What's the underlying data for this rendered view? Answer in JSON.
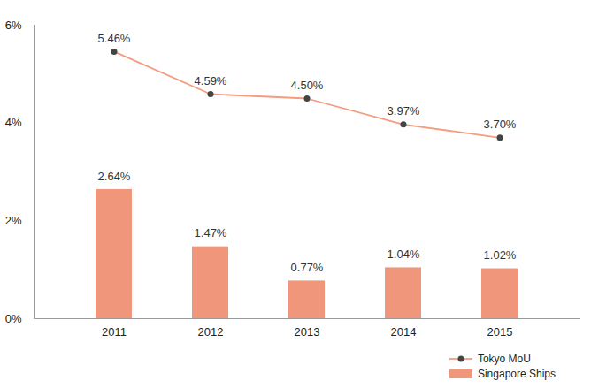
{
  "chart_data": {
    "type": "bar",
    "categories": [
      "2011",
      "2012",
      "2013",
      "2014",
      "2015"
    ],
    "series": [
      {
        "name": "Tokyo MoU",
        "type": "line",
        "color": "#f39c80",
        "marker": "circle",
        "values": [
          5.46,
          4.59,
          4.5,
          3.97,
          3.7
        ],
        "value_labels": [
          "5.46%",
          "4.59%",
          "4.50%",
          "3.97%",
          "3.70%"
        ]
      },
      {
        "name": "Singapore Ships",
        "type": "bar",
        "color": "#f0967a",
        "values": [
          2.64,
          1.47,
          0.77,
          1.04,
          1.02
        ],
        "value_labels": [
          "2.64%",
          "1.47%",
          "0.77%",
          "1.04%",
          "1.02%"
        ]
      }
    ],
    "ylim": [
      0,
      6
    ],
    "yticks": [
      {
        "value": 0,
        "label": "0%"
      },
      {
        "value": 2,
        "label": "2%"
      },
      {
        "value": 4,
        "label": "4%"
      },
      {
        "value": 6,
        "label": "6%"
      }
    ],
    "data_labels": true,
    "legend": "bottom-right",
    "grid": false
  }
}
